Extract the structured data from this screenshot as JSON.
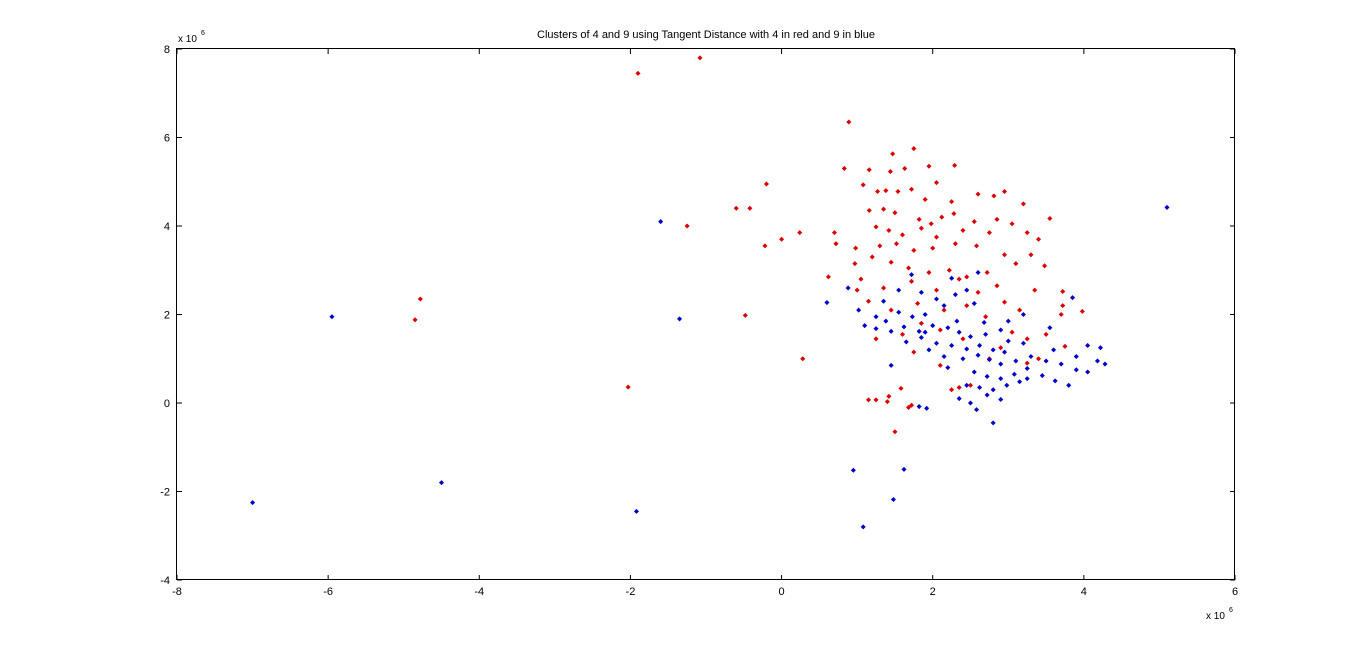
{
  "chart_data": {
    "type": "scatter",
    "title": "Clusters of 4 and 9 using Tangent Distance with 4 in red and 9 in blue",
    "xlabel": "",
    "ylabel": "",
    "xlim": [
      -8,
      6
    ],
    "ylim": [
      -4,
      8
    ],
    "x_ticks": [
      "-8",
      "-6",
      "-4",
      "-2",
      "0",
      "2",
      "4",
      "6"
    ],
    "y_ticks": [
      "-4",
      "-2",
      "0",
      "2",
      "4",
      "6",
      "8"
    ],
    "x_exponent": {
      "base": "x 10",
      "power": "6"
    },
    "y_exponent": {
      "base": "x 10",
      "power": "6"
    },
    "grid": false,
    "series": [
      {
        "color": "#dd0000",
        "points": [
          [
            -1.9,
            7.45
          ],
          [
            -1.08,
            7.8
          ],
          [
            0.89,
            6.35
          ],
          [
            -4.78,
            2.35
          ],
          [
            -4.85,
            1.88
          ],
          [
            -2.03,
            0.36
          ],
          [
            -0.48,
            1.98
          ],
          [
            0.28,
            1.0
          ],
          [
            -1.25,
            4.0
          ],
          [
            -0.6,
            4.4
          ],
          [
            -0.42,
            4.4
          ],
          [
            -0.2,
            4.95
          ],
          [
            0.0,
            3.7
          ],
          [
            0.24,
            3.85
          ],
          [
            -0.22,
            3.55
          ],
          [
            1.75,
            5.75
          ],
          [
            1.47,
            5.63
          ],
          [
            1.63,
            5.3
          ],
          [
            1.95,
            5.35
          ],
          [
            2.29,
            5.37
          ],
          [
            0.83,
            5.3
          ],
          [
            1.44,
            5.23
          ],
          [
            1.16,
            5.27
          ],
          [
            2.05,
            4.98
          ],
          [
            1.08,
            4.93
          ],
          [
            1.27,
            4.78
          ],
          [
            1.38,
            4.8
          ],
          [
            1.54,
            4.78
          ],
          [
            1.72,
            4.83
          ],
          [
            2.6,
            4.72
          ],
          [
            2.81,
            4.68
          ],
          [
            2.95,
            4.78
          ],
          [
            1.9,
            4.6
          ],
          [
            2.25,
            4.55
          ],
          [
            3.2,
            4.5
          ],
          [
            1.16,
            4.35
          ],
          [
            1.35,
            4.38
          ],
          [
            1.5,
            4.3
          ],
          [
            1.82,
            4.15
          ],
          [
            1.98,
            4.05
          ],
          [
            2.12,
            4.2
          ],
          [
            2.28,
            4.28
          ],
          [
            2.55,
            4.1
          ],
          [
            2.85,
            4.15
          ],
          [
            3.05,
            4.05
          ],
          [
            3.55,
            4.17
          ],
          [
            1.25,
            3.98
          ],
          [
            1.42,
            3.9
          ],
          [
            1.6,
            3.8
          ],
          [
            1.85,
            3.95
          ],
          [
            2.05,
            3.75
          ],
          [
            2.4,
            3.9
          ],
          [
            2.75,
            3.85
          ],
          [
            3.25,
            3.85
          ],
          [
            0.7,
            3.85
          ],
          [
            0.72,
            3.6
          ],
          [
            0.98,
            3.5
          ],
          [
            1.3,
            3.55
          ],
          [
            1.52,
            3.6
          ],
          [
            1.75,
            3.45
          ],
          [
            2.0,
            3.5
          ],
          [
            2.3,
            3.6
          ],
          [
            2.58,
            3.55
          ],
          [
            2.95,
            3.35
          ],
          [
            3.4,
            3.7
          ],
          [
            0.62,
            2.85
          ],
          [
            0.97,
            3.15
          ],
          [
            1.2,
            3.3
          ],
          [
            1.45,
            3.18
          ],
          [
            1.68,
            3.05
          ],
          [
            1.95,
            2.95
          ],
          [
            2.22,
            3.0
          ],
          [
            2.45,
            2.85
          ],
          [
            2.72,
            2.95
          ],
          [
            3.1,
            3.15
          ],
          [
            3.3,
            3.35
          ],
          [
            3.48,
            3.1
          ],
          [
            1.05,
            2.8
          ],
          [
            1.35,
            2.6
          ],
          [
            1.72,
            2.75
          ],
          [
            2.05,
            2.55
          ],
          [
            2.35,
            2.8
          ],
          [
            2.6,
            2.5
          ],
          [
            2.85,
            2.65
          ],
          [
            3.35,
            2.55
          ],
          [
            3.72,
            2.52
          ],
          [
            3.72,
            2.2
          ],
          [
            3.7,
            2.0
          ],
          [
            3.98,
            2.07
          ],
          [
            2.95,
            2.28
          ],
          [
            3.15,
            2.1
          ],
          [
            2.15,
            2.1
          ],
          [
            2.45,
            2.2
          ],
          [
            1.8,
            2.25
          ],
          [
            1.45,
            2.1
          ],
          [
            1.15,
            2.3
          ],
          [
            1.0,
            2.55
          ],
          [
            2.7,
            1.95
          ],
          [
            1.85,
            1.8
          ],
          [
            2.1,
            1.65
          ],
          [
            2.4,
            1.45
          ],
          [
            1.6,
            1.55
          ],
          [
            1.75,
            1.15
          ],
          [
            1.25,
            1.45
          ],
          [
            3.25,
            1.45
          ],
          [
            3.4,
            1.0
          ],
          [
            3.75,
            1.28
          ],
          [
            3.25,
            0.9
          ],
          [
            3.5,
            1.55
          ],
          [
            2.1,
            0.85
          ],
          [
            2.25,
            0.3
          ],
          [
            2.35,
            0.35
          ],
          [
            2.5,
            0.4
          ],
          [
            1.15,
            0.07
          ],
          [
            1.25,
            0.07
          ],
          [
            1.42,
            0.15
          ],
          [
            1.4,
            0.03
          ],
          [
            1.58,
            0.33
          ],
          [
            1.68,
            -0.1
          ],
          [
            1.72,
            -0.05
          ],
          [
            1.5,
            -0.65
          ],
          [
            2.75,
            1.0
          ],
          [
            2.9,
            1.25
          ],
          [
            3.05,
            1.6
          ]
        ]
      },
      {
        "color": "#0000cc",
        "points": [
          [
            -7.0,
            -2.25
          ],
          [
            -5.95,
            1.95
          ],
          [
            -4.5,
            -1.8
          ],
          [
            -1.92,
            -2.45
          ],
          [
            -1.6,
            4.1
          ],
          [
            -1.35,
            1.9
          ],
          [
            5.1,
            4.42
          ],
          [
            1.08,
            -2.8
          ],
          [
            0.95,
            -1.52
          ],
          [
            1.48,
            -2.18
          ],
          [
            1.62,
            -1.5
          ],
          [
            0.6,
            2.27
          ],
          [
            0.88,
            2.6
          ],
          [
            1.02,
            2.1
          ],
          [
            1.25,
            1.95
          ],
          [
            1.38,
            1.85
          ],
          [
            1.55,
            2.05
          ],
          [
            1.73,
            1.95
          ],
          [
            1.55,
            2.55
          ],
          [
            1.72,
            2.9
          ],
          [
            1.85,
            2.5
          ],
          [
            2.05,
            2.35
          ],
          [
            2.3,
            2.45
          ],
          [
            2.45,
            2.55
          ],
          [
            2.6,
            2.95
          ],
          [
            1.1,
            1.75
          ],
          [
            1.25,
            1.68
          ],
          [
            1.45,
            1.62
          ],
          [
            1.62,
            1.72
          ],
          [
            1.82,
            1.62
          ],
          [
            2.0,
            1.75
          ],
          [
            2.2,
            1.7
          ],
          [
            2.35,
            1.6
          ],
          [
            2.5,
            1.5
          ],
          [
            2.7,
            1.55
          ],
          [
            2.9,
            1.65
          ],
          [
            1.65,
            1.38
          ],
          [
            1.85,
            1.48
          ],
          [
            2.05,
            1.35
          ],
          [
            2.25,
            1.3
          ],
          [
            2.45,
            1.22
          ],
          [
            2.62,
            1.3
          ],
          [
            2.8,
            1.2
          ],
          [
            3.0,
            1.4
          ],
          [
            3.2,
            1.35
          ],
          [
            2.4,
            1.0
          ],
          [
            2.6,
            1.08
          ],
          [
            2.75,
            0.98
          ],
          [
            2.9,
            0.88
          ],
          [
            3.1,
            0.95
          ],
          [
            3.3,
            1.05
          ],
          [
            3.5,
            0.95
          ],
          [
            3.7,
            0.88
          ],
          [
            3.9,
            0.75
          ],
          [
            4.05,
            0.7
          ],
          [
            4.28,
            0.88
          ],
          [
            4.22,
            1.25
          ],
          [
            4.05,
            1.3
          ],
          [
            3.9,
            1.05
          ],
          [
            2.55,
            0.7
          ],
          [
            2.72,
            0.6
          ],
          [
            2.9,
            0.55
          ],
          [
            3.08,
            0.65
          ],
          [
            3.25,
            0.55
          ],
          [
            3.45,
            0.62
          ],
          [
            3.62,
            0.5
          ],
          [
            3.8,
            0.4
          ],
          [
            2.45,
            0.4
          ],
          [
            2.62,
            0.35
          ],
          [
            2.8,
            0.3
          ],
          [
            2.98,
            0.4
          ],
          [
            3.15,
            0.48
          ],
          [
            2.35,
            0.1
          ],
          [
            2.5,
            0.0
          ],
          [
            2.58,
            -0.15
          ],
          [
            2.8,
            -0.45
          ],
          [
            1.92,
            -0.12
          ],
          [
            1.82,
            -0.08
          ],
          [
            2.72,
            0.18
          ],
          [
            2.9,
            0.08
          ],
          [
            1.45,
            0.85
          ],
          [
            1.95,
            1.2
          ],
          [
            2.15,
            1.05
          ],
          [
            3.85,
            2.38
          ],
          [
            3.55,
            1.7
          ],
          [
            3.0,
            1.85
          ],
          [
            3.2,
            2.0
          ],
          [
            2.25,
            2.82
          ],
          [
            2.55,
            2.25
          ],
          [
            2.15,
            2.2
          ],
          [
            1.9,
            2.0
          ],
          [
            1.35,
            2.3
          ],
          [
            2.68,
            1.82
          ],
          [
            2.32,
            1.85
          ],
          [
            1.9,
            1.6
          ],
          [
            3.25,
            0.78
          ],
          [
            3.6,
            1.2
          ],
          [
            4.18,
            0.95
          ],
          [
            2.2,
            0.8
          ],
          [
            2.95,
            1.15
          ]
        ]
      }
    ]
  }
}
